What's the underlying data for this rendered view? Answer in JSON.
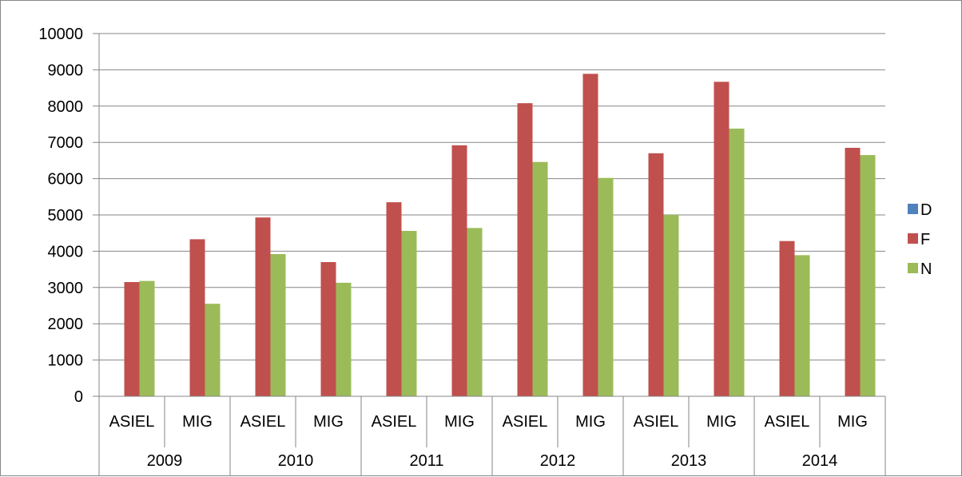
{
  "chart_data": {
    "type": "bar",
    "title": "",
    "xlabel": "",
    "ylabel": "",
    "ylim": [
      0,
      10000
    ],
    "ytick_step": 1000,
    "yticks": [
      "0",
      "1000",
      "2000",
      "3000",
      "4000",
      "5000",
      "6000",
      "7000",
      "8000",
      "9000",
      "10000"
    ],
    "grid": true,
    "legend_position": "right",
    "groups": [
      "2009",
      "2010",
      "2011",
      "2012",
      "2013",
      "2014"
    ],
    "categories": [
      "ASIEL",
      "MIG",
      "ASIEL",
      "MIG",
      "ASIEL",
      "MIG",
      "ASIEL",
      "MIG",
      "ASIEL",
      "MIG",
      "ASIEL",
      "MIG"
    ],
    "series": [
      {
        "name": "D",
        "color": "#4f81bd",
        "values": [
          0,
          0,
          0,
          0,
          0,
          0,
          0,
          0,
          0,
          0,
          0,
          0
        ]
      },
      {
        "name": "F",
        "color": "#c0504d",
        "values": [
          3150,
          4330,
          4930,
          3700,
          5350,
          6920,
          8080,
          8890,
          6700,
          8670,
          4280,
          6850
        ]
      },
      {
        "name": "N",
        "color": "#9bbb59",
        "values": [
          3180,
          2550,
          3920,
          3130,
          4560,
          4640,
          6460,
          6020,
          5000,
          7380,
          3890,
          6650
        ]
      }
    ]
  }
}
